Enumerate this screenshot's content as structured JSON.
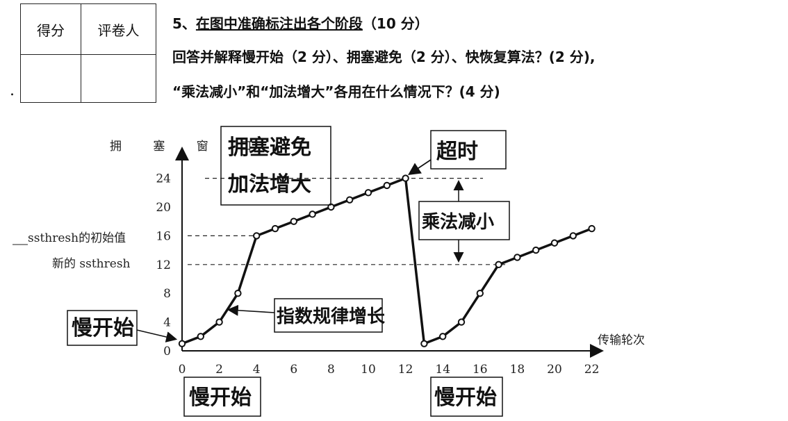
{
  "score_table": {
    "col1": "得分",
    "col2": "评卷人"
  },
  "question": {
    "number": "5、",
    "title": "在图中准确标注出各个阶段",
    "title_points": "（10 分）",
    "line2": "回答并解释慢开始（2 分）、拥塞避免（2 分）、快恢复算法？(2 分),",
    "line3": "“乘法减小”和“加法增大”各用在什么情况下？(4 分)"
  },
  "figure": {
    "ylabel": "拥 塞 窗 口",
    "xlabel": "传输轮次",
    "ylabel_left1": "ssthresh的初始值",
    "ylabel_left2": "新的 ssthresh",
    "ssthresh_initial": 16,
    "ssthresh_new": 12,
    "peak": 24
  },
  "chart_data": {
    "type": "line",
    "xlabel": "传输轮次",
    "ylabel": "拥 塞 窗 口",
    "x_ticks": [
      0,
      2,
      4,
      6,
      8,
      10,
      12,
      14,
      16,
      18,
      20,
      22
    ],
    "y_ticks": [
      0,
      4,
      8,
      12,
      16,
      20,
      24
    ],
    "xlim": [
      0,
      22
    ],
    "ylim": [
      0,
      26
    ],
    "series": [
      {
        "x": [
          0,
          1,
          2,
          3,
          4,
          5,
          6,
          7,
          8,
          9,
          10,
          11,
          12,
          13,
          14,
          15,
          16,
          17,
          18,
          19,
          20,
          21,
          22
        ],
        "y": [
          1,
          2,
          4,
          8,
          16,
          17,
          18,
          19,
          20,
          21,
          22,
          23,
          24,
          1,
          2,
          4,
          8,
          12,
          13,
          14,
          15,
          16,
          17
        ]
      }
    ],
    "reference_lines": [
      16,
      12,
      24
    ]
  },
  "annotations": {
    "congestion_avoidance": "拥塞避免",
    "additive_increase": "加法增大",
    "timeout": "超时",
    "multiplicative_decrease": "乘法减小",
    "exponential_growth": "指数规律增长",
    "slow_start_1": "慢开始",
    "slow_start_2": "慢开始",
    "slow_start_3": "慢开始"
  }
}
